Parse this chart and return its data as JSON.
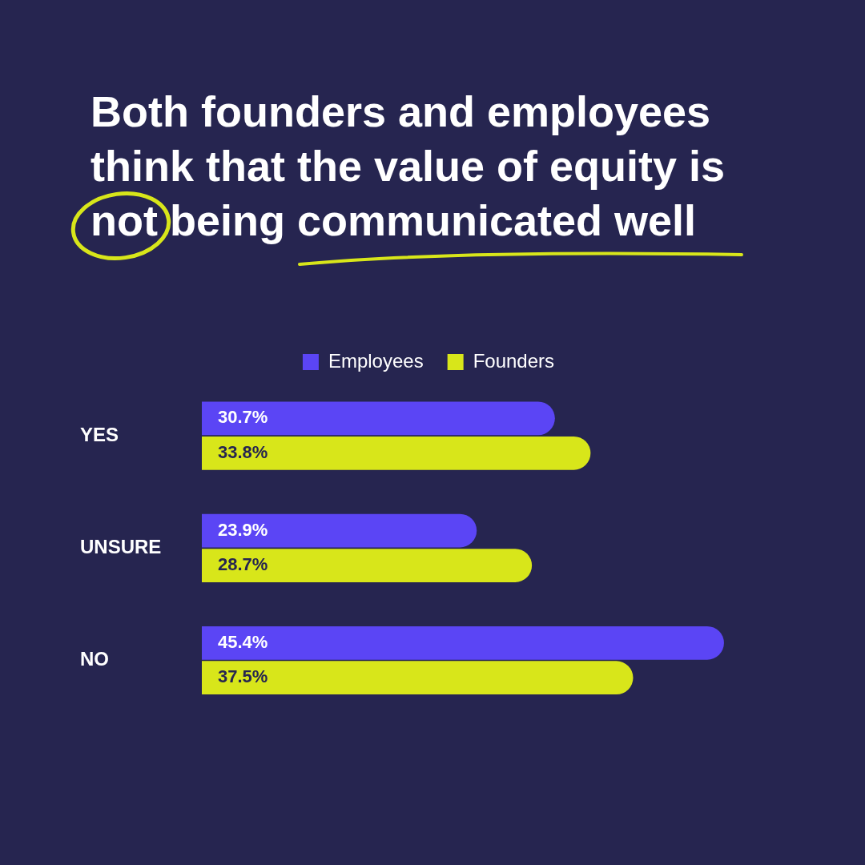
{
  "chart_data": {
    "type": "bar",
    "orientation": "horizontal",
    "title": "Both founders and employees think that the value of equity is not being communicated well",
    "categories": [
      "YES",
      "UNSURE",
      "NO"
    ],
    "series": [
      {
        "name": "Employees",
        "color": "#5b45f5",
        "values": [
          30.7,
          23.9,
          45.4
        ],
        "value_labels": [
          "30.7%",
          "23.9%",
          "45.4%"
        ]
      },
      {
        "name": "Founders",
        "color": "#d8e61a",
        "values": [
          33.8,
          28.7,
          37.5
        ],
        "value_labels": [
          "33.8%",
          "28.7%",
          "37.5%"
        ]
      }
    ],
    "legend": "top"
  }
}
